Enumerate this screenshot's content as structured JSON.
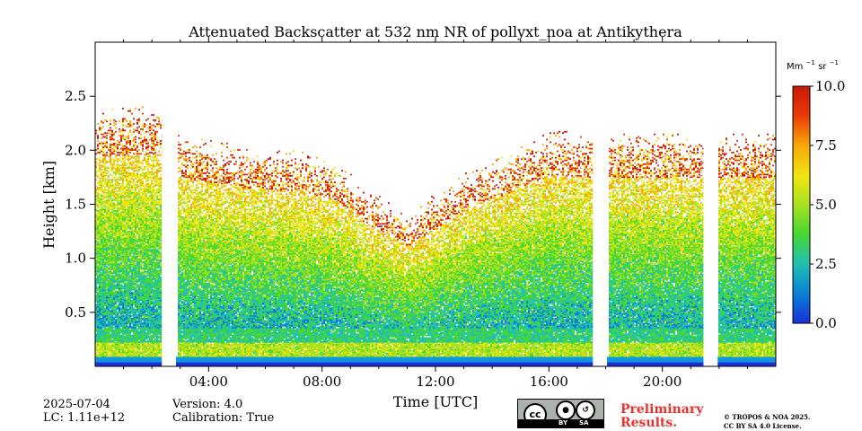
{
  "chart_data": {
    "type": "heatmap",
    "title": "Attenuated Backscatter at 532 nm NR of pollyxt_noa at Antikythera",
    "xlabel": "Time [UTC]",
    "ylabel": "Height [km]",
    "xlim_hours": [
      0,
      24
    ],
    "ylim_km": [
      0,
      3.0
    ],
    "x_ticks": [
      {
        "value": 4,
        "label": "04:00"
      },
      {
        "value": 8,
        "label": "08:00"
      },
      {
        "value": 12,
        "label": "12:00"
      },
      {
        "value": 16,
        "label": "16:00"
      },
      {
        "value": 20,
        "label": "20:00"
      }
    ],
    "y_ticks": [
      {
        "value": 0.5,
        "label": "0.5"
      },
      {
        "value": 1.0,
        "label": "1.0"
      },
      {
        "value": 1.5,
        "label": "1.5"
      },
      {
        "value": 2.0,
        "label": "2.0"
      },
      {
        "value": 2.5,
        "label": "2.5"
      }
    ],
    "colorbar": {
      "unit_base": "Mm",
      "unit_exp1": "−1",
      "unit_mid": " sr",
      "unit_exp2": "−1",
      "range": [
        0,
        10
      ],
      "ticks": [
        {
          "value": 0,
          "label": "0.0"
        },
        {
          "value": 2.5,
          "label": "2.5"
        },
        {
          "value": 5,
          "label": "5.0"
        },
        {
          "value": 7.5,
          "label": "7.5"
        },
        {
          "value": 10,
          "label": "10.0"
        }
      ]
    },
    "data_gaps_hours": [
      [
        2.35,
        2.85
      ],
      [
        17.55,
        18.05
      ],
      [
        21.45,
        21.95
      ]
    ],
    "layer_top_km": [
      [
        0,
        2.28
      ],
      [
        2.3,
        2.3
      ],
      [
        3.0,
        2.05
      ],
      [
        5.0,
        1.95
      ],
      [
        7.0,
        1.9
      ],
      [
        8.5,
        1.8
      ],
      [
        9.5,
        1.55
      ],
      [
        10.5,
        1.4
      ],
      [
        11.0,
        1.3
      ],
      [
        12.0,
        1.5
      ],
      [
        13.0,
        1.7
      ],
      [
        14.0,
        1.8
      ],
      [
        15.0,
        1.95
      ],
      [
        16.0,
        2.08
      ],
      [
        17.5,
        2.05
      ],
      [
        18.0,
        2.05
      ],
      [
        21.5,
        2.05
      ],
      [
        24.0,
        2.05
      ]
    ]
  },
  "footer": {
    "date": "2025-07-04",
    "lc": "LC: 1.11e+12",
    "version": "Version: 4.0",
    "calibration": "Calibration: True",
    "preliminary_line1": "Preliminary",
    "preliminary_line2": "Results.",
    "copyright_line1": "© TROPOS & NOA 2025.",
    "copyright_line2": "CC BY SA 4.0 License.",
    "license_badge": {
      "icons": [
        "cc-icon",
        "by-icon",
        "sa-icon"
      ],
      "labels": [
        "BY",
        "SA"
      ]
    }
  },
  "colors": {
    "cmap": [
      "#1a2fd6",
      "#0a7dd6",
      "#20c0b0",
      "#48d830",
      "#a8e020",
      "#f0e610",
      "#f8a808",
      "#e83808",
      "#c81808"
    ],
    "license_accent": "#e8332e"
  }
}
